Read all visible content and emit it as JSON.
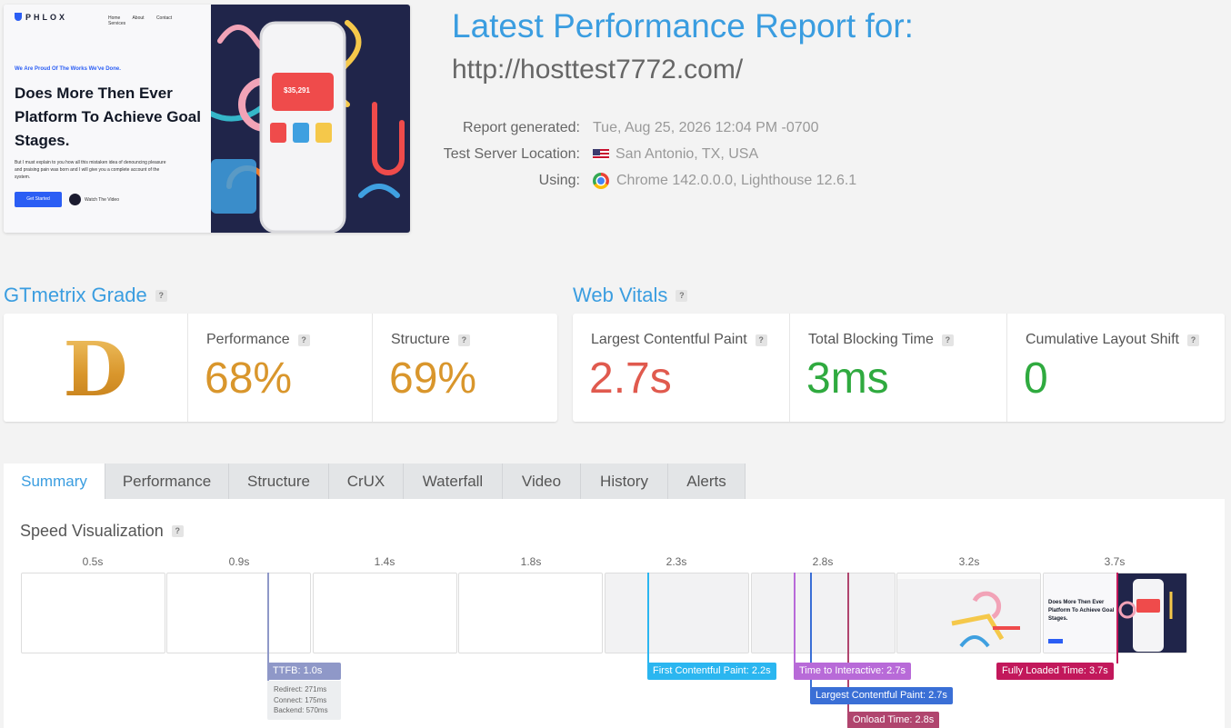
{
  "screenshot": {
    "logo": "PHLOX",
    "nav": [
      "Home",
      "About",
      "Contact",
      "Services"
    ],
    "kicker": "We Are Proud Of The Works We've Done.",
    "headline": "Does More Then Ever Platform To Achieve Goal Stages.",
    "description": "But I must explain to you how all this mistaken idea of denouncing pleasure and praising pain was born and I will give you a complete account of the system.",
    "cta": "Get Started",
    "video": "Watch The Video",
    "card_amount": "$35,291"
  },
  "report": {
    "title": "Latest Performance Report for:",
    "url": "http://hosttest7772.com/",
    "generated_label": "Report generated:",
    "generated_value": "Tue, Aug 25, 2026 12:04 PM -0700",
    "location_label": "Test Server Location:",
    "location_value": "San Antonio, TX, USA",
    "using_label": "Using:",
    "using_value": "Chrome 142.0.0.0, Lighthouse 12.6.1"
  },
  "grade": {
    "heading": "GTmetrix Grade",
    "letter": "D",
    "performance_label": "Performance",
    "performance_value": "68%",
    "structure_label": "Structure",
    "structure_value": "69%"
  },
  "vitals": {
    "heading": "Web Vitals",
    "lcp_label": "Largest Contentful Paint",
    "lcp_value": "2.7s",
    "tbt_label": "Total Blocking Time",
    "tbt_value": "3ms",
    "cls_label": "Cumulative Layout Shift",
    "cls_value": "0"
  },
  "colors": {
    "accent": "#3a9de0",
    "grade_d": "#d9962c",
    "poor": "#e05a4e",
    "good": "#2faa3f"
  },
  "tabs": [
    "Summary",
    "Performance",
    "Structure",
    "CrUX",
    "Waterfall",
    "Video",
    "History",
    "Alerts"
  ],
  "active_tab": "Summary",
  "speed": {
    "title": "Speed Visualization",
    "ticks": [
      "0.5s",
      "0.9s",
      "1.4s",
      "1.8s",
      "2.3s",
      "2.8s",
      "3.2s",
      "3.7s"
    ],
    "ttfb": "TTFB: 1.0s",
    "redirect": "Redirect: 271ms",
    "connect": "Connect: 175ms",
    "backend": "Backend: 570ms",
    "fcp": "First Contentful Paint: 2.2s",
    "tti": "Time to Interactive: 2.7s",
    "lcp": "Largest Contentful Paint: 2.7s",
    "onload": "Onload Time: 2.8s",
    "fully_loaded": "Fully Loaded Time: 3.7s"
  },
  "help_icon": "?"
}
